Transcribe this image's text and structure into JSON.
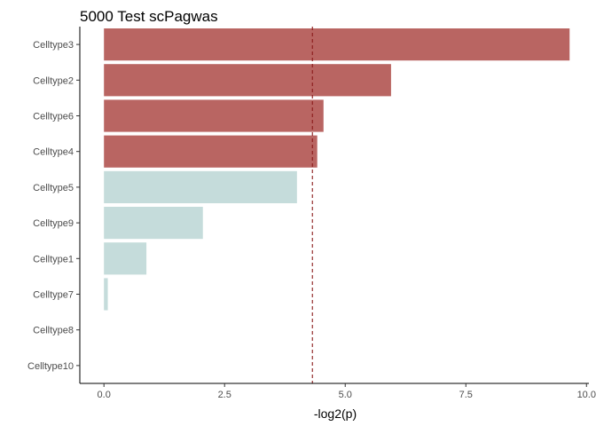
{
  "chart_data": {
    "type": "bar",
    "orientation": "horizontal",
    "title": "5000 Test scPagwas",
    "xlabel": "-log2(p)",
    "ylabel": "",
    "xlim": [
      -0.5,
      10.05
    ],
    "xticks": [
      0.0,
      2.5,
      5.0,
      7.5,
      10.0
    ],
    "xtick_labels": [
      "0.0",
      "2.5",
      "5.0",
      "7.5",
      "10.0"
    ],
    "grid": false,
    "threshold": {
      "value": 4.32,
      "style": "dashed",
      "color": "#8b1a1a"
    },
    "categories": [
      "Celltype3",
      "Celltype2",
      "Celltype6",
      "Celltype4",
      "Celltype5",
      "Celltype9",
      "Celltype1",
      "Celltype7",
      "Celltype8",
      "Celltype10"
    ],
    "values": [
      9.65,
      5.95,
      4.55,
      4.42,
      4.0,
      2.05,
      0.88,
      0.08,
      0.0,
      0.0
    ],
    "colors": {
      "significant": "#b96562",
      "not_significant": "#c5dcdb"
    },
    "bar_colors": [
      "significant",
      "significant",
      "significant",
      "significant",
      "not_significant",
      "not_significant",
      "not_significant",
      "not_significant",
      "not_significant",
      "not_significant"
    ]
  }
}
